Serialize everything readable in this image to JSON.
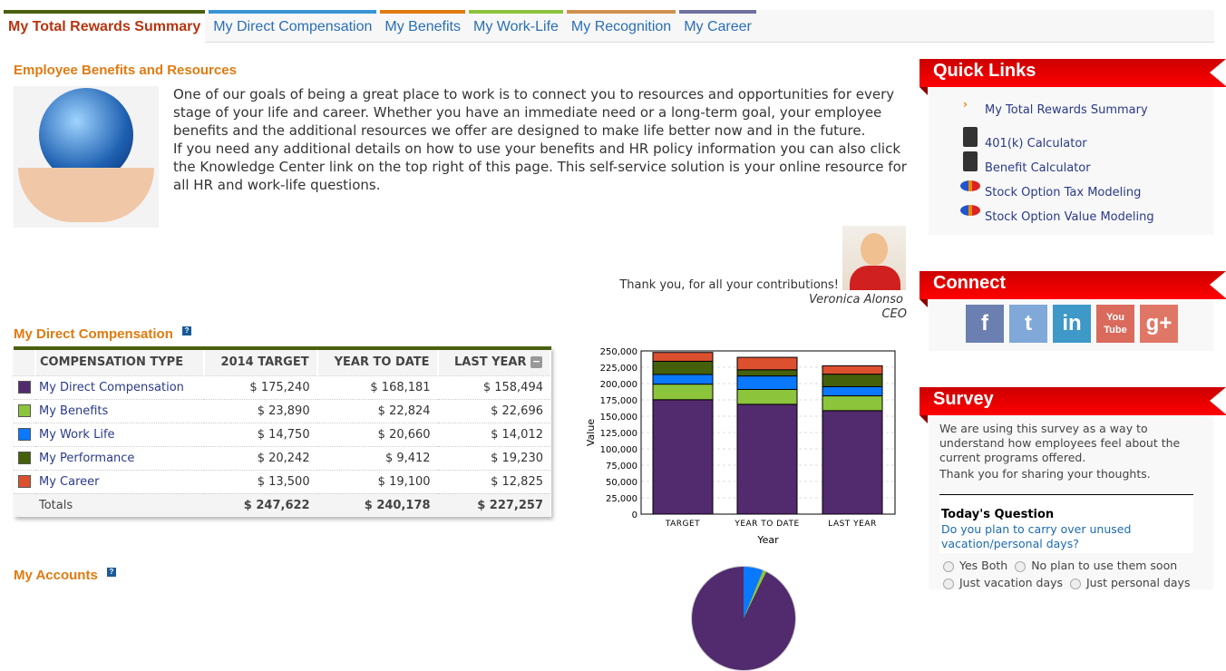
{
  "tabs": [
    {
      "label": "My Total Rewards Summary",
      "color": "#4a6010"
    },
    {
      "label": "My Direct Compensation",
      "color": "#3a93d4"
    },
    {
      "label": "My Benefits",
      "color": "#e07a10"
    },
    {
      "label": "My Work-Life",
      "color": "#8cc43c"
    },
    {
      "label": "My Recognition",
      "color": "#d09050"
    },
    {
      "label": "My Career",
      "color": "#7070a0"
    }
  ],
  "intro": {
    "title": "Employee Benefits and Resources",
    "p1": "One of our goals of being a great place to work is to connect you to resources and opportunities for every stage of your life and career. Whether you have an immediate need or a long-term goal, your employee benefits and the additional resources we offer are designed to make life better now and in the future.",
    "p2": "If you need any additional details on how to use your benefits and HR policy information you can also click the Knowledge Center link on the top right of this page. This self-service solution is your online resource for all HR and work-life questions.",
    "thanks": "Thank you, for all your contributions!",
    "name": "Veronica Alonso",
    "role": "CEO"
  },
  "comp": {
    "title": "My Direct Compensation",
    "help": "?",
    "headers": [
      "COMPENSATION TYPE",
      "2014 TARGET",
      "YEAR TO DATE",
      "LAST YEAR"
    ],
    "rows": [
      {
        "name": "My Direct Compensation",
        "color": "#522a6e",
        "v": [
          "$ 175,240",
          "$ 168,181",
          "$ 158,494"
        ]
      },
      {
        "name": "My Benefits",
        "color": "#8cc43c",
        "v": [
          "$ 23,890",
          "$ 22,824",
          "$ 22,696"
        ]
      },
      {
        "name": "My Work Life",
        "color": "#0a78ff",
        "v": [
          "$ 14,750",
          "$ 20,660",
          "$ 14,012"
        ]
      },
      {
        "name": "My Performance",
        "color": "#44600a",
        "v": [
          "$ 20,242",
          "$ 9,412",
          "$ 19,230"
        ]
      },
      {
        "name": "My Career",
        "color": "#dc5030",
        "v": [
          "$ 13,500",
          "$ 19,100",
          "$ 12,825"
        ]
      }
    ],
    "totals": {
      "label": "Totals",
      "v": [
        "$ 247,622",
        "$ 240,178",
        "$ 227,257"
      ]
    }
  },
  "chart_data": {
    "type": "bar",
    "stacked": true,
    "categories": [
      "TARGET",
      "YEAR TO DATE",
      "LAST YEAR"
    ],
    "xlabel": "Year",
    "ylabel": "Value",
    "ylim": [
      0,
      250000
    ],
    "yticks": [
      "0",
      "25,000",
      "50,000",
      "75,000",
      "100,000",
      "125,000",
      "150,000",
      "175,000",
      "200,000",
      "225,000",
      "250,000"
    ],
    "series": [
      {
        "name": "My Direct Compensation",
        "color": "#522a6e",
        "values": [
          175240,
          168181,
          158494
        ]
      },
      {
        "name": "My Benefits",
        "color": "#8cc43c",
        "values": [
          23890,
          22824,
          22696
        ]
      },
      {
        "name": "My Work Life",
        "color": "#0a78ff",
        "values": [
          14750,
          20660,
          14012
        ]
      },
      {
        "name": "My Performance",
        "color": "#44600a",
        "values": [
          20242,
          9412,
          19230
        ]
      },
      {
        "name": "My Career",
        "color": "#dc5030",
        "values": [
          13500,
          19100,
          12825
        ]
      }
    ]
  },
  "accounts": {
    "title": "My Accounts",
    "help": "?"
  },
  "quick": {
    "title": "Quick Links",
    "links": [
      "My Total Rewards Summary",
      "401(k) Calculator",
      "Benefit Calculator",
      "Stock Option Tax Modeling",
      "Stock Option Value Modeling"
    ]
  },
  "connect": {
    "title": "Connect",
    "icons": [
      {
        "label": "f",
        "color": "#6b80b0"
      },
      {
        "label": "t",
        "color": "#80a8d8"
      },
      {
        "label": "in",
        "color": "#3e98c8"
      },
      {
        "label": "You Tube",
        "color": "#d96a5c"
      },
      {
        "label": "g+",
        "color": "#e07766"
      }
    ]
  },
  "survey": {
    "title": "Survey",
    "desc": "We are using this survey as a way to understand how employees feel about the current programs offered.",
    "thanks": "Thank you for sharing your thoughts.",
    "qtitle": "Today's Question",
    "question": "Do you plan to carry over unused vacation/personal days?",
    "options": [
      "Yes Both",
      "No plan to use them soon",
      "Just vacation days",
      "Just personal days"
    ]
  }
}
